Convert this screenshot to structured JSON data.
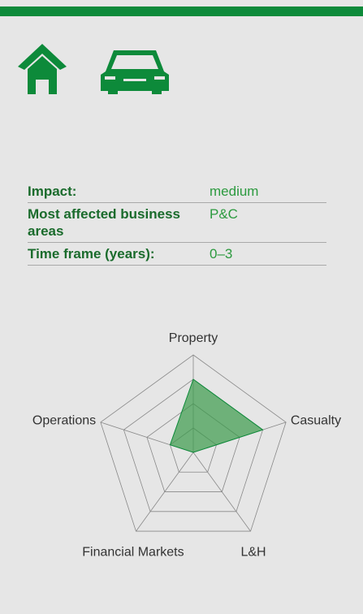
{
  "table": {
    "rows": [
      [
        "Impact:",
        "medium"
      ],
      [
        "Most affected business areas",
        "P&C"
      ],
      [
        "Time frame (years):",
        "0–3"
      ]
    ]
  },
  "chart_data": {
    "type": "radar",
    "categories": [
      "Property",
      "Casualty",
      "L&H",
      "Financial Markets",
      "Operations"
    ],
    "values": [
      3,
      3,
      0,
      0,
      1
    ],
    "color": "#3a9a4a",
    "rlim": [
      0,
      4
    ],
    "rticks": [
      1,
      2,
      3,
      4
    ],
    "grid": true
  }
}
